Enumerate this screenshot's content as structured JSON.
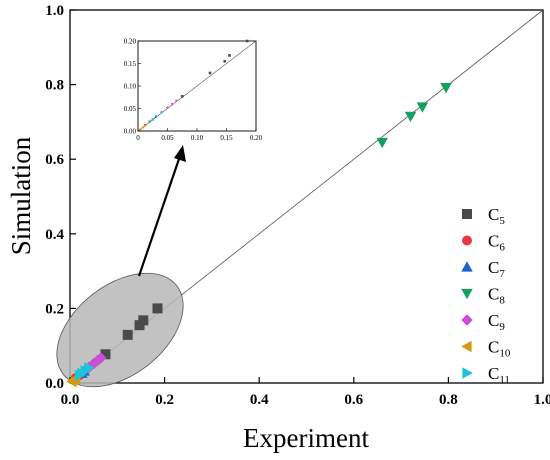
{
  "chart_data": {
    "type": "scatter",
    "title": "",
    "xlabel": "Experiment",
    "ylabel": "Simulation",
    "xlim": [
      0.0,
      1.0
    ],
    "ylim": [
      0.0,
      1.0
    ],
    "x_ticks": [
      "0.0",
      "0.2",
      "0.4",
      "0.6",
      "0.8",
      "1.0"
    ],
    "y_ticks": [
      "0.0",
      "0.2",
      "0.4",
      "0.6",
      "0.8",
      "1.0"
    ],
    "reference_line": "y = x",
    "grid": false,
    "legend_position": "right",
    "series": [
      {
        "name": "5",
        "marker": "square",
        "color": "#4a4a4a",
        "points": [
          [
            0.075,
            0.077
          ],
          [
            0.122,
            0.129
          ],
          [
            0.147,
            0.155
          ],
          [
            0.155,
            0.168
          ],
          [
            0.185,
            0.2
          ]
        ]
      },
      {
        "name": "6",
        "marker": "circle",
        "color": "#e8383d",
        "points": [
          [
            0.012,
            0.013
          ],
          [
            0.02,
            0.021
          ]
        ]
      },
      {
        "name": "7",
        "marker": "triangle-up",
        "color": "#1f63c6",
        "points": [
          [
            0.025,
            0.026
          ],
          [
            0.03,
            0.032
          ]
        ]
      },
      {
        "name": "8",
        "marker": "triangle-down",
        "color": "#16a05f",
        "points": [
          [
            0.66,
            0.645
          ],
          [
            0.72,
            0.715
          ],
          [
            0.745,
            0.74
          ],
          [
            0.795,
            0.792
          ]
        ]
      },
      {
        "name": "9",
        "marker": "diamond",
        "color": "#c94fd6",
        "points": [
          [
            0.04,
            0.042
          ],
          [
            0.05,
            0.052
          ],
          [
            0.058,
            0.06
          ],
          [
            0.065,
            0.067
          ]
        ]
      },
      {
        "name": "10",
        "marker": "triangle-left",
        "color": "#d39a10",
        "points": [
          [
            0.004,
            0.004
          ],
          [
            0.008,
            0.008
          ],
          [
            0.012,
            0.012
          ]
        ]
      },
      {
        "name": "11",
        "marker": "triangle-right",
        "color": "#1fc4d6",
        "points": [
          [
            0.02,
            0.02
          ],
          [
            0.025,
            0.026
          ],
          [
            0.032,
            0.033
          ],
          [
            0.04,
            0.041
          ]
        ]
      }
    ],
    "inset": {
      "xlim": [
        0.0,
        0.2
      ],
      "ylim": [
        0.0,
        0.2
      ],
      "x_ticks": [
        "0",
        "0.05",
        "0.10",
        "0.15",
        "0.20"
      ],
      "y_ticks": [
        "0.00",
        "0.05",
        "0.10",
        "0.15",
        "0.20"
      ]
    }
  },
  "legend_letter": "C"
}
